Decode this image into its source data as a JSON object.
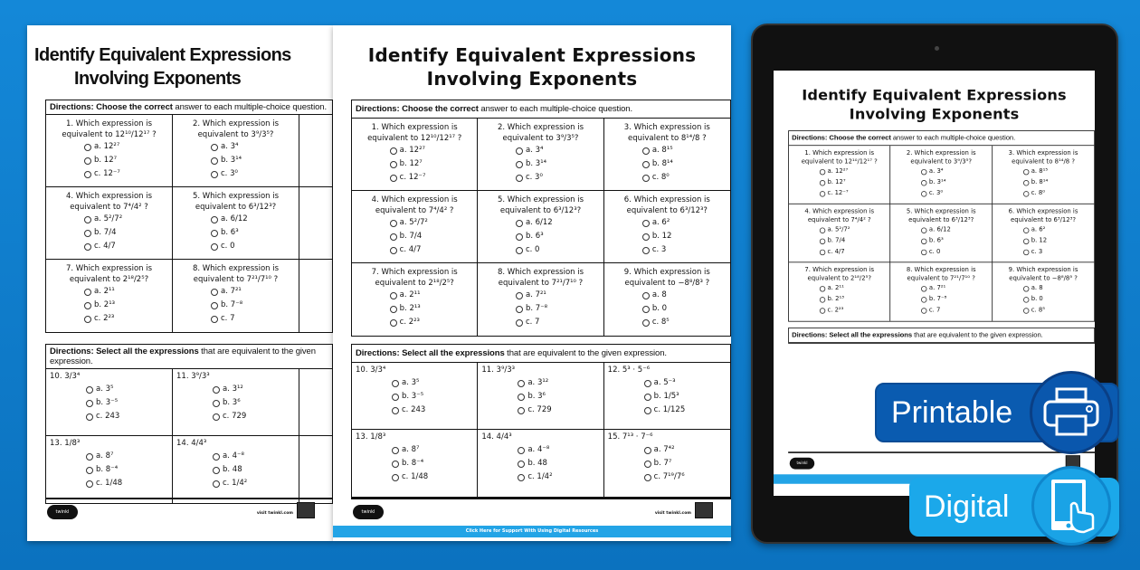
{
  "worksheet": {
    "title_line1": "Identify Equivalent Expressions",
    "title_line2": "Involving Exponents",
    "section1": {
      "directions_bold": "Directions:",
      "directions_bold2": " Choose the correct ",
      "directions_rest": "answer to each multiple-choice question.",
      "questions": [
        {
          "num": "1.",
          "line1": "Which expression is",
          "line2": "equivalent to 12¹⁰/12¹⁷ ?",
          "options": [
            "a. 12²⁷",
            "b. 12⁷",
            "c. 12⁻⁷"
          ]
        },
        {
          "num": "2.",
          "line1": "Which expression is",
          "line2": "equivalent to 3⁹/3⁵?",
          "options": [
            "a. 3⁴",
            "b. 3¹⁴",
            "c. 3⁰"
          ]
        },
        {
          "num": "3.",
          "line1": "Which expression is",
          "line2": "equivalent to 8¹⁴/8 ?",
          "options": [
            "a. 8¹⁵",
            "b. 8¹⁴",
            "c. 8⁰"
          ]
        },
        {
          "num": "4.",
          "line1": "Which expression is",
          "line2": "equivalent to 7⁴/4² ?",
          "options": [
            "a. 5²/7²",
            "b. 7/4",
            "c. 4/7"
          ]
        },
        {
          "num": "5.",
          "line1": "Which expression is",
          "line2": "equivalent to 6³/12³?",
          "options": [
            "a. 6/12",
            "b. 6³",
            "c. 0"
          ]
        },
        {
          "num": "6.",
          "line1": "Which expression is",
          "line2": "equivalent to 6³/12³?",
          "options": [
            "a. 6²",
            "b. 12",
            "c. 3"
          ]
        },
        {
          "num": "7.",
          "line1": "Which expression is",
          "line2": "equivalent to 2¹⁸/2⁵?",
          "options": [
            "a. 2¹¹",
            "b. 2¹³",
            "c. 2²³"
          ]
        },
        {
          "num": "8.",
          "line1": "Which expression is",
          "line2": "equivalent to 7²¹/7¹⁰ ?",
          "options": [
            "a. 7²¹",
            "b. 7⁻⁸",
            "c. 7"
          ]
        },
        {
          "num": "9.",
          "line1": "Which expression is",
          "line2": "equivalent to −8⁸/8³ ?",
          "options": [
            "a. 8",
            "b. 0",
            "c. 8⁵"
          ]
        }
      ]
    },
    "section2": {
      "directions_bold": "Directions:",
      "directions_bold2": " Select all the expressions",
      "directions_rest": " that are equivalent to the given expression.",
      "questions": [
        {
          "label": "10. 3/3⁴",
          "options": [
            "a. 3⁵",
            "b. 3⁻⁵",
            "c. 243"
          ]
        },
        {
          "label": "11. 3⁹/3³",
          "options": [
            "a. 3¹²",
            "b. 3⁶",
            "c. 729"
          ]
        },
        {
          "label": "12. 5³ · 5⁻⁶",
          "options": [
            "a. 5⁻³",
            "b. 1/5³",
            "c. 1/125"
          ]
        },
        {
          "label": "13. 1/8³",
          "options": [
            "a. 8⁷",
            "b. 8⁻⁴",
            "c. 1/48"
          ]
        },
        {
          "label": "14. 4/4³",
          "options": [
            "a. 4⁻⁸",
            "b. 48",
            "c. 1/4²"
          ]
        },
        {
          "label": "15. 7¹³ · 7⁻⁶",
          "options": [
            "a. 7⁴²",
            "b. 7⁷",
            "c. 7¹⁹/7⁶"
          ]
        }
      ]
    },
    "logo_text": "twinkl",
    "visit_text": "visit twinkl.com",
    "footer_bar": "Click Here for Support With Using Digital Resources"
  },
  "badges": {
    "printable": "Printable",
    "digital": "Digital",
    "printable_icon": "printer-icon",
    "digital_icon": "tablet-touch-icon"
  },
  "colors": {
    "background": "#0e7ccc",
    "printable_badge": "#0a5bb0",
    "digital_badge": "#1ba8ea",
    "footer_bar": "#23a4e6"
  }
}
